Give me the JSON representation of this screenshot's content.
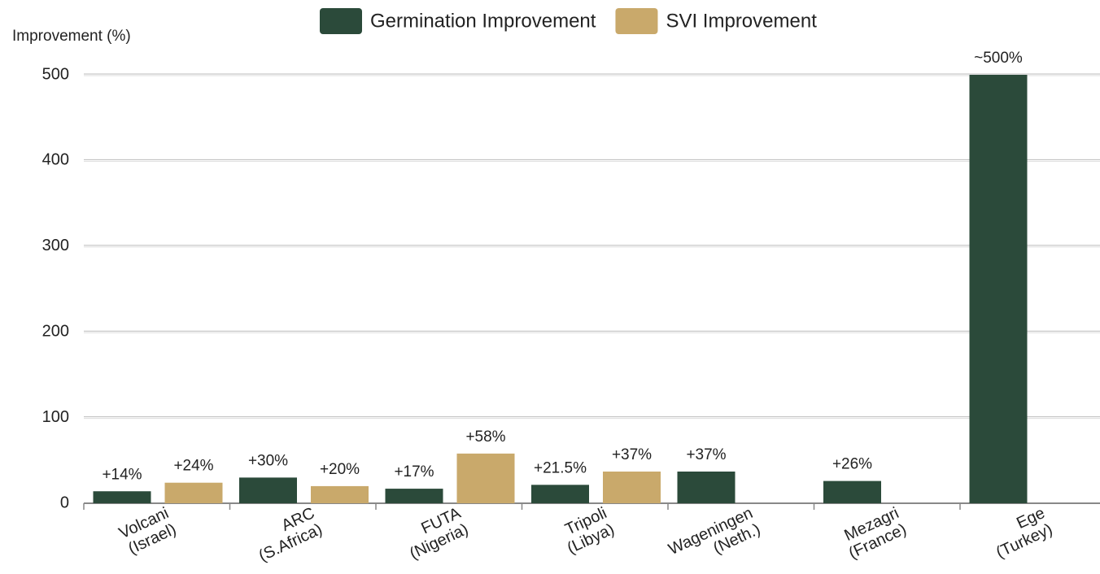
{
  "chart_data": {
    "type": "bar",
    "y_label": "Improvement (%)",
    "categories": [
      [
        "Volcani",
        "(Israel)"
      ],
      [
        "ARC",
        "(S.Africa)"
      ],
      [
        "FUTA",
        "(Nigeria)"
      ],
      [
        "Tripoli",
        "(Libya)"
      ],
      [
        "Wageningen",
        "(Neth.)"
      ],
      [
        "Mezagri",
        "(France)"
      ],
      [
        "Ege",
        "(Turkey)"
      ]
    ],
    "series": [
      {
        "name": "Germination Improvement",
        "color": "#2b4a3a",
        "values": [
          14,
          30,
          17,
          21.5,
          37,
          26,
          500
        ],
        "value_labels": [
          "+14%",
          "+30%",
          "+17%",
          "+21.5%",
          "+37%",
          "+26%",
          "~500%"
        ]
      },
      {
        "name": "SVI Improvement",
        "color": "#c9a96b",
        "values": [
          24,
          20,
          58,
          37,
          null,
          null,
          null
        ],
        "value_labels": [
          "+24%",
          "+20%",
          "+58%",
          "+37%",
          null,
          null,
          null
        ]
      }
    ],
    "ylim": [
      0,
      500
    ],
    "yticks": [
      0,
      100,
      200,
      300,
      400,
      500
    ],
    "grid": true,
    "legend": "top"
  }
}
